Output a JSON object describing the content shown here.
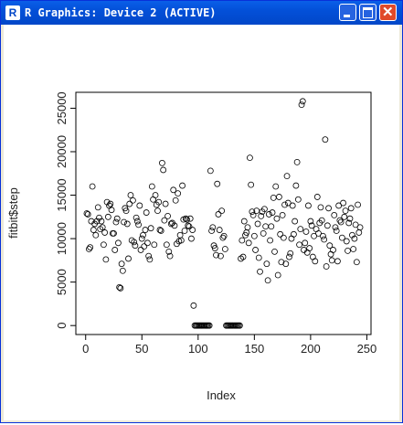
{
  "window": {
    "title": "R Graphics: Device 2 (ACTIVE)"
  },
  "chart_data": {
    "type": "scatter",
    "x_label": "Index",
    "y_label": "fitbit$step",
    "x": [
      1,
      2,
      3,
      4,
      5,
      6,
      7,
      8,
      9,
      10,
      11,
      12,
      13,
      14,
      15,
      16,
      17,
      18,
      19,
      20,
      21,
      22,
      23,
      24,
      25,
      26,
      27,
      28,
      29,
      30,
      31,
      32,
      33,
      34,
      35,
      36,
      37,
      38,
      39,
      40,
      41,
      42,
      43,
      44,
      45,
      46,
      47,
      48,
      49,
      50,
      51,
      52,
      53,
      54,
      55,
      56,
      57,
      58,
      59,
      60,
      61,
      62,
      63,
      64,
      65,
      66,
      67,
      68,
      69,
      70,
      71,
      72,
      73,
      74,
      75,
      76,
      77,
      78,
      79,
      80,
      81,
      82,
      83,
      84,
      85,
      86,
      87,
      88,
      89,
      90,
      91,
      92,
      93,
      94,
      95,
      96,
      97,
      98,
      99,
      100,
      101,
      102,
      103,
      104,
      105,
      106,
      107,
      108,
      109,
      110,
      111,
      112,
      113,
      114,
      115,
      116,
      117,
      118,
      119,
      120,
      121,
      122,
      123,
      124,
      125,
      126,
      127,
      128,
      129,
      130,
      131,
      132,
      133,
      134,
      135,
      136,
      137,
      138,
      139,
      140,
      141,
      142,
      143,
      144,
      145,
      146,
      147,
      148,
      149,
      150,
      151,
      152,
      153,
      154,
      155,
      156,
      157,
      158,
      159,
      160,
      161,
      162,
      163,
      164,
      165,
      166,
      167,
      168,
      169,
      170,
      171,
      172,
      173,
      174,
      175,
      176,
      177,
      178,
      179,
      180,
      181,
      182,
      183,
      184,
      185,
      186,
      187,
      188,
      189,
      190,
      191,
      192,
      193,
      194,
      195,
      196,
      197,
      198,
      199,
      200,
      201,
      202,
      203,
      204,
      205,
      206,
      207,
      208,
      209,
      210,
      211,
      212,
      213,
      214,
      215,
      216,
      217,
      218,
      219,
      220,
      221,
      222,
      223,
      224,
      225,
      226,
      227,
      228,
      229,
      230,
      231,
      232,
      233,
      234,
      235,
      236,
      237,
      238,
      239,
      240,
      241,
      242,
      243,
      244
    ],
    "values": [
      12900,
      12800,
      8800,
      9000,
      12000,
      16000,
      11000,
      11700,
      10400,
      12000,
      13600,
      12400,
      11100,
      12000,
      11300,
      9300,
      10700,
      7600,
      14200,
      12500,
      13800,
      14000,
      13300,
      10600,
      10600,
      8700,
      11900,
      12300,
      9500,
      4400,
      4300,
      7100,
      6300,
      11900,
      13500,
      13200,
      11700,
      7700,
      14000,
      15000,
      9800,
      14400,
      9600,
      9200,
      12400,
      12000,
      11600,
      13800,
      8700,
      10000,
      10400,
      9100,
      11000,
      13000,
      9500,
      8000,
      7600,
      11200,
      16000,
      14500,
      9300,
      15000,
      13900,
      13200,
      14200,
      11000,
      10900,
      18700,
      17900,
      12100,
      14000,
      9300,
      12600,
      8500,
      8000,
      11700,
      11800,
      15600,
      11500,
      14400,
      9400,
      15200,
      9700,
      10400,
      9800,
      16100,
      12200,
      10900,
      12300,
      12200,
      11500,
      11400,
      12300,
      10000,
      11000,
      2300,
      0,
      0,
      0,
      0,
      0,
      0,
      0,
      0,
      0,
      0,
      0,
      0,
      0,
      0,
      17800,
      10900,
      11300,
      9200,
      8900,
      8100,
      16300,
      12800,
      11000,
      8000,
      13200,
      10100,
      10300,
      8800,
      0,
      0,
      0,
      0,
      0,
      0,
      0,
      0,
      0,
      0,
      0,
      0,
      0,
      7700,
      9800,
      7900,
      12000,
      10400,
      10700,
      11300,
      9500,
      19300,
      16200,
      13100,
      12700,
      10300,
      8700,
      13200,
      11700,
      7800,
      6200,
      12600,
      13100,
      10600,
      13400,
      11400,
      7100,
      5200,
      12800,
      9800,
      11400,
      13000,
      14700,
      8500,
      16000,
      12300,
      5800,
      14800,
      10500,
      7300,
      12700,
      10100,
      13900,
      7100,
      17200,
      14100,
      7900,
      8300,
      10000,
      13800,
      10500,
      12000,
      16100,
      18800,
      14500,
      9300,
      11100,
      25400,
      25800,
      8700,
      9500,
      10800,
      8400,
      13800,
      8900,
      12000,
      11500,
      7900,
      10300,
      7400,
      11100,
      14800,
      10600,
      11800,
      13600,
      12100,
      10300,
      9900,
      21400,
      6800,
      11500,
      13500,
      9200,
      8200,
      7500,
      8700,
      12700,
      11300,
      10900,
      7400,
      13800,
      12100,
      11900,
      10100,
      14100,
      12500,
      13200,
      9700,
      8600,
      11800,
      12300,
      13500,
      10400,
      8800,
      10000,
      11600,
      7300,
      13900,
      10700,
      11300
    ],
    "xlim": [
      -8.72,
      253.72
    ],
    "xticks": [
      0,
      50,
      100,
      150,
      200,
      250
    ],
    "ylim": [
      -1032,
      26832
    ],
    "yticks": [
      0,
      5000,
      10000,
      15000,
      20000,
      25000
    ],
    "color": "#000000"
  }
}
